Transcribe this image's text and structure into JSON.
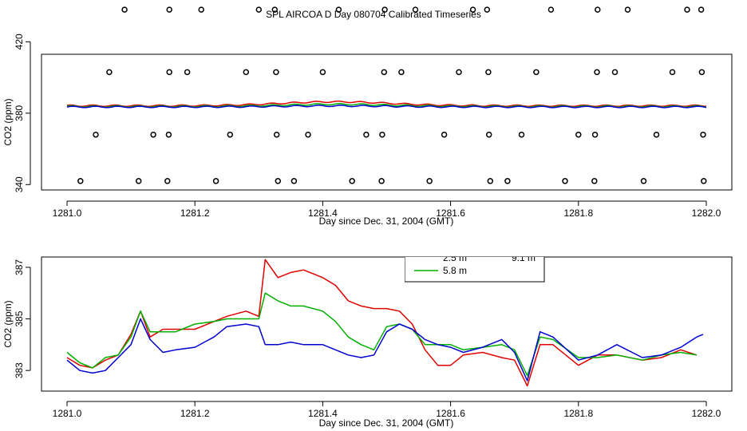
{
  "figure_title": "SPL AIRCOA D  Day 080704  Calibrated Timeseries",
  "colors": {
    "red": "#e00000",
    "green": "#00b000",
    "blue": "#0000d0",
    "axis": "#000000"
  },
  "chart_data": [
    {
      "type": "scatter+line",
      "title": "",
      "xlabel": "Day since Dec. 31, 2004 (GMT)",
      "ylabel": "CO2 (ppm)",
      "xlim": [
        1281.0,
        1282.0
      ],
      "ylim": [
        337,
        413
      ],
      "xticks": [
        "1281.0",
        "1281.2",
        "1281.4",
        "1281.6",
        "1281.8",
        "1282.0"
      ],
      "yticks": [
        "340",
        "380",
        "420"
      ],
      "ytick_values": [
        340,
        380,
        420
      ],
      "calibration_points": {
        "level_1_value": 438,
        "level_2_value": 403,
        "level_3_value": 368,
        "level_4_value": 342,
        "level_1_x": [
          1281.09,
          1281.16,
          1281.21,
          1281.3,
          1281.325,
          1281.425,
          1281.497,
          1281.545,
          1281.635,
          1281.657,
          1281.757,
          1281.83,
          1281.877,
          1281.97,
          1281.992
        ],
        "level_2_x": [
          1281.066,
          1281.16,
          1281.188,
          1281.28,
          1281.327,
          1281.4,
          1281.496,
          1281.523,
          1281.613,
          1281.659,
          1281.734,
          1281.829,
          1281.857,
          1281.947,
          1281.993
        ],
        "level_3_x": [
          1281.045,
          1281.135,
          1281.159,
          1281.255,
          1281.328,
          1281.377,
          1281.468,
          1281.493,
          1281.59,
          1281.66,
          1281.711,
          1281.8,
          1281.826,
          1281.922,
          1281.995
        ],
        "level_4_x": [
          1281.021,
          1281.112,
          1281.157,
          1281.233,
          1281.33,
          1281.355,
          1281.446,
          1281.492,
          1281.567,
          1281.662,
          1281.689,
          1281.779,
          1281.825,
          1281.902,
          1281.996
        ]
      },
      "series": [
        {
          "name": "2.5 m",
          "color": "red",
          "level": 384.2,
          "bump_center": 1281.42,
          "bump_height": 2.2,
          "bump_width": 0.12
        },
        {
          "name": "5.8 m",
          "color": "green",
          "level": 383.8,
          "bump_center": 1281.42,
          "bump_height": 1.2,
          "bump_width": 0.12
        },
        {
          "name": "9.1 m",
          "color": "blue",
          "level": 383.5,
          "bump_center": 1281.42,
          "bump_height": 0.6,
          "bump_width": 0.12
        }
      ]
    },
    {
      "type": "line",
      "title": "",
      "xlabel": "Day since Dec. 31, 2004 (GMT)",
      "ylabel": "CO2 (ppm)",
      "xlim": [
        1281.0,
        1282.0
      ],
      "ylim": [
        382.2,
        387.4
      ],
      "xticks": [
        "1281.0",
        "1281.2",
        "1281.4",
        "1281.6",
        "1281.8",
        "1282.0"
      ],
      "yticks": [
        "383",
        "385",
        "387"
      ],
      "ytick_values": [
        383,
        385,
        387
      ],
      "legend": {
        "placement": "top-center, partially clipped",
        "entries": [
          "2.5 m",
          "5.8 m",
          "9.1 m"
        ]
      },
      "series": [
        {
          "name": "2.5 m",
          "color": "red",
          "x": [
            1281.0,
            1281.02,
            1281.04,
            1281.06,
            1281.08,
            1281.1,
            1281.115,
            1281.13,
            1281.15,
            1281.17,
            1281.2,
            1281.23,
            1281.25,
            1281.28,
            1281.3,
            1281.31,
            1281.33,
            1281.35,
            1281.37,
            1281.4,
            1281.42,
            1281.44,
            1281.46,
            1281.48,
            1281.5,
            1281.52,
            1281.54,
            1281.56,
            1281.58,
            1281.6,
            1281.62,
            1281.65,
            1281.68,
            1281.7,
            1281.72,
            1281.74,
            1281.76,
            1281.8,
            1281.83,
            1281.86,
            1281.9,
            1281.93,
            1281.96,
            1281.985
          ],
          "values": [
            383.5,
            383.2,
            383.1,
            383.4,
            383.6,
            384.4,
            385.3,
            384.3,
            384.6,
            384.6,
            384.6,
            384.9,
            385.1,
            385.3,
            385.1,
            387.3,
            386.6,
            386.8,
            386.9,
            386.6,
            386.3,
            385.7,
            385.5,
            385.4,
            385.4,
            385.3,
            384.8,
            383.8,
            383.2,
            383.2,
            383.6,
            383.7,
            383.5,
            383.4,
            382.4,
            384.0,
            384.0,
            383.2,
            383.6,
            383.6,
            383.4,
            383.5,
            383.8,
            383.6
          ]
        },
        {
          "name": "5.8 m",
          "color": "green",
          "x": [
            1281.0,
            1281.02,
            1281.04,
            1281.06,
            1281.08,
            1281.1,
            1281.115,
            1281.13,
            1281.15,
            1281.17,
            1281.2,
            1281.23,
            1281.25,
            1281.28,
            1281.3,
            1281.31,
            1281.33,
            1281.35,
            1281.37,
            1281.4,
            1281.42,
            1281.44,
            1281.46,
            1281.48,
            1281.5,
            1281.52,
            1281.54,
            1281.56,
            1281.58,
            1281.6,
            1281.62,
            1281.65,
            1281.68,
            1281.7,
            1281.72,
            1281.74,
            1281.76,
            1281.8,
            1281.83,
            1281.86,
            1281.9,
            1281.93,
            1281.96,
            1281.985
          ],
          "values": [
            383.7,
            383.3,
            383.1,
            383.5,
            383.6,
            384.3,
            385.3,
            384.5,
            384.5,
            384.5,
            384.8,
            384.9,
            385.0,
            385.0,
            385.0,
            386.0,
            385.7,
            385.5,
            385.5,
            385.3,
            384.9,
            384.3,
            384.0,
            383.8,
            384.7,
            384.8,
            384.6,
            384.0,
            384.0,
            384.0,
            383.8,
            383.9,
            384.0,
            383.8,
            382.8,
            384.3,
            384.2,
            383.5,
            383.5,
            383.6,
            383.4,
            383.6,
            383.7,
            383.6
          ]
        },
        {
          "name": "9.1 m",
          "color": "blue",
          "x": [
            1281.0,
            1281.02,
            1281.04,
            1281.06,
            1281.08,
            1281.1,
            1281.115,
            1281.13,
            1281.15,
            1281.17,
            1281.2,
            1281.23,
            1281.25,
            1281.28,
            1281.3,
            1281.31,
            1281.33,
            1281.35,
            1281.37,
            1281.4,
            1281.42,
            1281.44,
            1281.46,
            1281.48,
            1281.5,
            1281.52,
            1281.54,
            1281.56,
            1281.58,
            1281.6,
            1281.62,
            1281.65,
            1281.68,
            1281.7,
            1281.72,
            1281.74,
            1281.76,
            1281.8,
            1281.83,
            1281.86,
            1281.9,
            1281.93,
            1281.96,
            1281.985,
            1281.995
          ],
          "values": [
            383.4,
            383.0,
            382.9,
            383.0,
            383.5,
            384.0,
            385.0,
            384.2,
            383.7,
            383.8,
            383.9,
            384.3,
            384.7,
            384.8,
            384.7,
            384.0,
            384.0,
            384.1,
            384.0,
            384.0,
            383.8,
            383.6,
            383.5,
            383.6,
            384.5,
            384.8,
            384.6,
            384.2,
            384.0,
            383.9,
            383.7,
            383.9,
            384.2,
            383.7,
            382.6,
            384.5,
            384.3,
            383.4,
            383.6,
            384.0,
            383.5,
            383.6,
            383.9,
            384.3,
            384.4
          ]
        }
      ]
    }
  ]
}
